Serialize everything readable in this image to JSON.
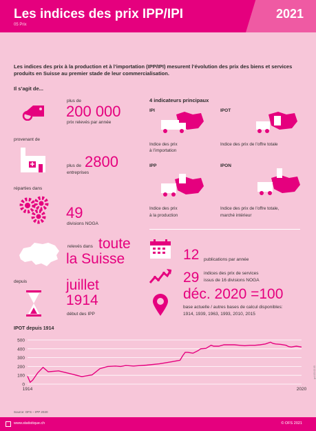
{
  "header": {
    "title": "Les indices des prix IPP/IPI",
    "subtitle": "05 Prix",
    "year": "2021"
  },
  "intro": "Les indices des prix à la production et à l’importation (IPP/IPI) mesurent l’évolution des prix des biens et services produits en Suisse au premier stade de leur commercialisation.",
  "it_is": "Il s’agit de...",
  "facts": {
    "prices_pre": "plus de",
    "prices_num": "200 000",
    "prices_post": "prix relevés par année",
    "from_label": "provenant de",
    "ent_pre": "plus de",
    "ent_num": "2800",
    "ent_post": "entreprises",
    "split_label": "réparties dans",
    "noga_num": "49",
    "noga_post": "divisions NOGA",
    "swiss_pre": "relevés dans",
    "swiss_big1": "toute",
    "swiss_big2": "la Suisse",
    "since_label": "depuis",
    "since_big1": "juillet",
    "since_big2": "1914",
    "since_post": "début des IPP"
  },
  "indicators": {
    "title": "4 indicateurs principaux",
    "items": [
      {
        "code": "IPI",
        "desc1": "Indice des prix",
        "desc2": "à l’importation"
      },
      {
        "code": "IPOT",
        "desc1": "Indice des prix de l’offre totale",
        "desc2": ""
      },
      {
        "code": "IPP",
        "desc1": "Indice des prix",
        "desc2": "à la production"
      },
      {
        "code": "IPON",
        "desc1": "Indice des prix de l’offre totale,",
        "desc2": "marché intérieur"
      }
    ]
  },
  "stats": {
    "pub_num": "12",
    "pub_text": "publications par année",
    "serv_num": "29",
    "serv_text1": "indices des prix de services",
    "serv_text2": "issus de 16 divisions NOGA",
    "base_big": "déc. 2020 =100",
    "base_text1": "base actuelle / autres bases de calcul disponibles:",
    "base_text2": "1914, 1939, 1963, 1993, 2010, 2015"
  },
  "chart_title": "IPOT depuis 1914",
  "chart_data": {
    "type": "line",
    "title": "IPOT depuis 1914",
    "x_tick_labels": [
      "1914",
      "2020"
    ],
    "y_ticks": [
      0,
      100,
      200,
      300,
      400,
      500
    ],
    "ylim": [
      0,
      500
    ],
    "xlim": [
      1914,
      2020
    ],
    "color": "#e5007e",
    "x": [
      1914,
      1915,
      1916,
      1918,
      1920,
      1922,
      1926,
      1931,
      1935,
      1937,
      1939,
      1942,
      1945,
      1948,
      1950,
      1952,
      1955,
      1960,
      1965,
      1970,
      1973,
      1974,
      1975,
      1976,
      1978,
      1980,
      1981,
      1983,
      1985,
      1986,
      1988,
      1990,
      1992,
      1994,
      1996,
      1998,
      2000,
      2002,
      2004,
      2006,
      2008,
      2009,
      2010,
      2012,
      2014,
      2015,
      2016,
      2018,
      2020
    ],
    "y": [
      90,
      20,
      45,
      130,
      190,
      140,
      150,
      115,
      85,
      95,
      105,
      175,
      200,
      205,
      200,
      210,
      205,
      215,
      230,
      255,
      270,
      320,
      360,
      360,
      350,
      380,
      400,
      405,
      440,
      430,
      430,
      445,
      445,
      445,
      440,
      435,
      440,
      440,
      445,
      455,
      475,
      460,
      455,
      450,
      440,
      425,
      420,
      430,
      420
    ]
  },
  "source": "Source: OFS – IPP 2020",
  "footer": {
    "site": "www.statistique.ch",
    "copy": "© OFS 2021"
  },
  "vertical": "gr-f-05.02.05"
}
